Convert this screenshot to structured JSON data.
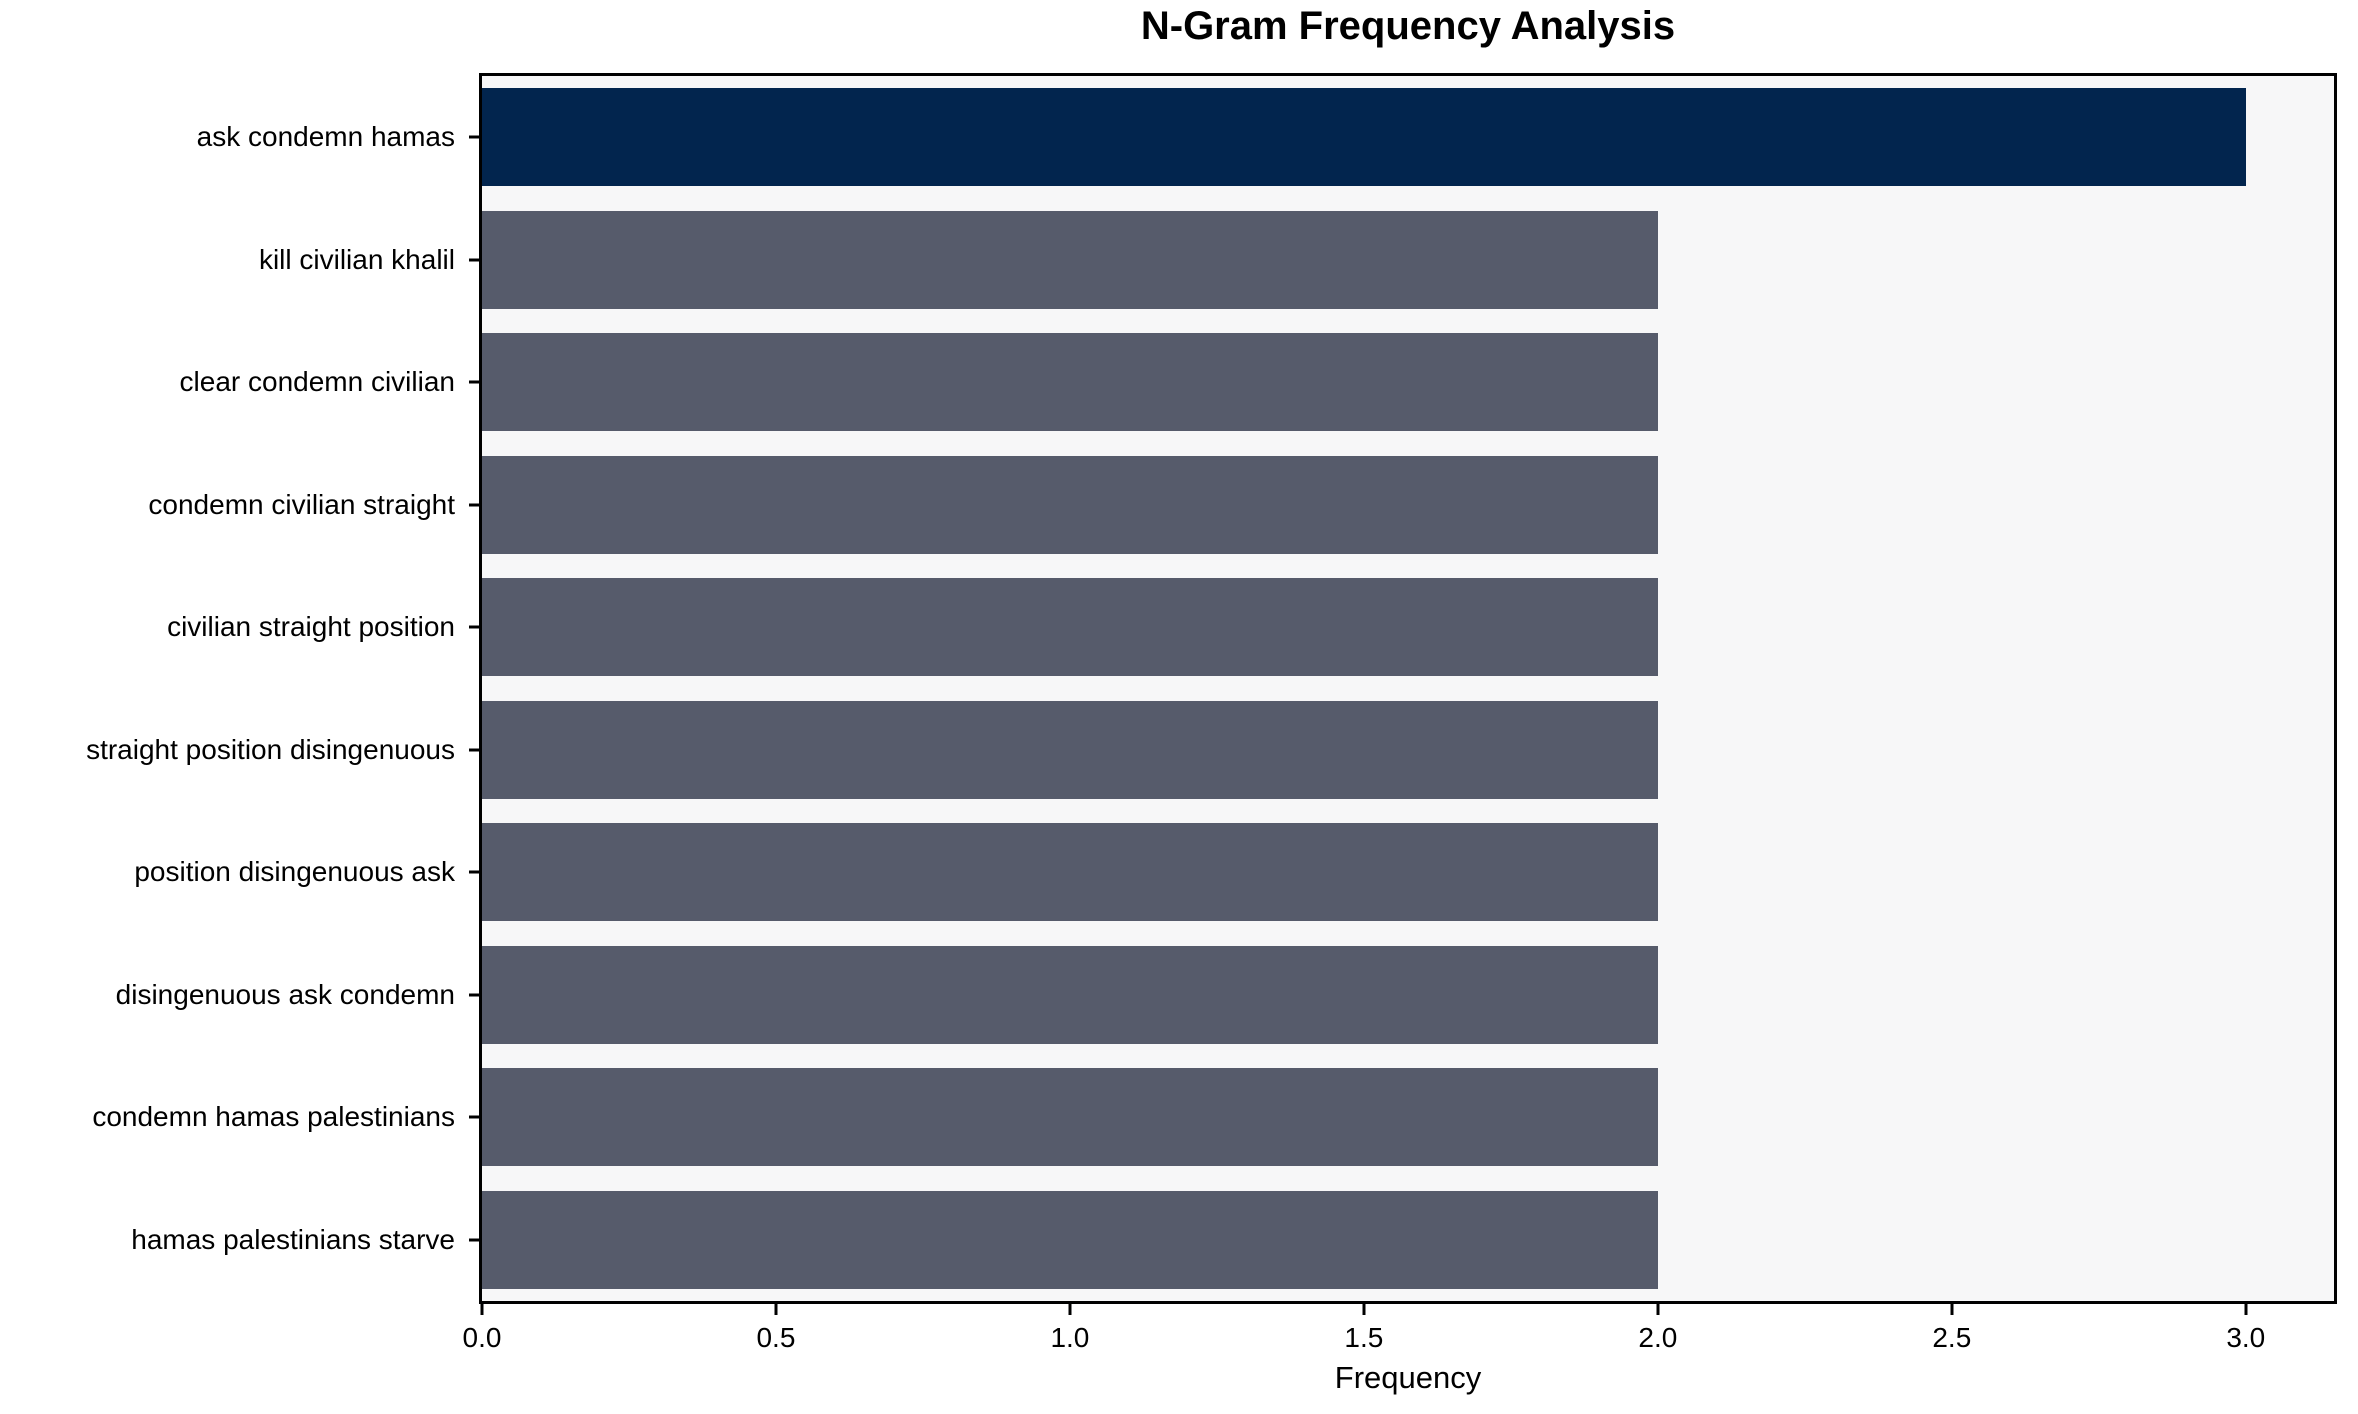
{
  "chart_data": {
    "type": "bar",
    "orientation": "horizontal",
    "title": "N-Gram Frequency Analysis",
    "xlabel": "Frequency",
    "ylabel": "",
    "categories": [
      "ask condemn hamas",
      "kill civilian khalil",
      "clear condemn civilian",
      "condemn civilian straight",
      "civilian straight position",
      "straight position disingenuous",
      "position disingenuous ask",
      "disingenuous ask condemn",
      "condemn hamas palestinians",
      "hamas palestinians starve"
    ],
    "values": [
      3,
      2,
      2,
      2,
      2,
      2,
      2,
      2,
      2,
      2
    ],
    "xlim": [
      0,
      3.15
    ],
    "x_ticks": [
      0.0,
      0.5,
      1.0,
      1.5,
      2.0,
      2.5,
      3.0
    ],
    "x_tick_labels": [
      "0.0",
      "0.5",
      "1.0",
      "1.5",
      "2.0",
      "2.5",
      "3.0"
    ],
    "grid": false,
    "legend": null,
    "colors": {
      "highlight_bar": "#02254e",
      "default_bar": "#565b6b",
      "plot_background": "#f7f7f8",
      "figure_background": "#ffffff",
      "text": "#000000"
    },
    "highlight_index": 0,
    "bar_fraction_of_band": 0.8
  }
}
